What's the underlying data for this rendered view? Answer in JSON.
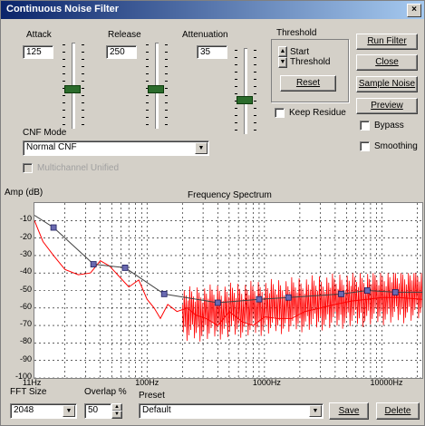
{
  "window": {
    "title": "Continuous Noise Filter",
    "close_glyph": "×"
  },
  "controls": {
    "attack": {
      "label": "Attack",
      "value": "125",
      "level": 0.55
    },
    "release": {
      "label": "Release",
      "value": "250",
      "level": 0.55
    },
    "attenuation": {
      "label": "Attenuation",
      "value": "35",
      "level": 0.62
    }
  },
  "threshold": {
    "group_label": "Threshold",
    "spin_label_1": "Start",
    "spin_label_2": "Threshold",
    "reset_label": "Reset"
  },
  "buttons": {
    "run_filter": "Run Filter",
    "close": "Close",
    "sample_noise": "Sample Noise",
    "preview": "Preview"
  },
  "checkboxes": {
    "keep_residue": "Keep Residue",
    "bypass": "Bypass",
    "smoothing": "Smoothing",
    "disabled_option": "Multichannel Unified"
  },
  "cnf_mode": {
    "label": "CNF Mode",
    "value": "Normal CNF"
  },
  "chart_labels": {
    "ylabel": "Amp (dB)",
    "title": "Frequency Spectrum"
  },
  "bottom": {
    "fft_label": "FFT Size",
    "fft_value": "2048",
    "overlap_label": "Overlap %",
    "overlap_value": "50",
    "preset_label": "Preset",
    "preset_value": "Default",
    "save": "Save",
    "delete": "Delete"
  },
  "colors": {
    "spectrum": "#ff0000",
    "curve": "#404040",
    "node": "#6a6ab0"
  },
  "chart_data": {
    "type": "line",
    "title": "Frequency Spectrum",
    "xlabel": "",
    "ylabel": "Amp (dB)",
    "xscale": "log",
    "xlim": [
      11,
      22050
    ],
    "ylim": [
      -100,
      0
    ],
    "x_ticks": [
      {
        "value": 11,
        "label": "11Hz"
      },
      {
        "value": 100,
        "label": "100Hz"
      },
      {
        "value": 1000,
        "label": "1000Hz"
      },
      {
        "value": 10000,
        "label": "10000Hz"
      }
    ],
    "y_ticks": [
      -10,
      -20,
      -30,
      -40,
      -50,
      -60,
      -70,
      -80,
      -90,
      -100
    ],
    "grid": true,
    "series": [
      {
        "role": "threshold-curve",
        "x": [
          11,
          16,
          35,
          65,
          140,
          400,
          900,
          1600,
          2700,
          4500,
          7500,
          13000,
          22050
        ],
        "y": [
          -7,
          -14,
          -35,
          -37,
          -52,
          -57,
          -55,
          -54,
          -53,
          -52,
          -50,
          -51,
          -51
        ],
        "nodes": [
          16,
          35,
          65,
          140,
          400,
          900,
          1600,
          4500,
          7500,
          13000
        ]
      },
      {
        "role": "noise-spectrum",
        "x": [
          11,
          13,
          16,
          20,
          26,
          33,
          40,
          48,
          58,
          70,
          85,
          100,
          115,
          130,
          150,
          180,
          220,
          260,
          320,
          400,
          500,
          650,
          800,
          1000,
          1300,
          1700,
          2200,
          3000,
          4000,
          5500,
          7500,
          10000,
          14000,
          22050
        ],
        "y": [
          -10,
          -22,
          -30,
          -38,
          -41,
          -40,
          -33,
          -36,
          -42,
          -48,
          -44,
          -55,
          -60,
          -66,
          -58,
          -62,
          -60,
          -64,
          -66,
          -70,
          -62,
          -68,
          -70,
          -65,
          -66,
          -66,
          -62,
          -60,
          -58,
          -56,
          -55,
          -54,
          -54,
          -55
        ]
      }
    ]
  }
}
